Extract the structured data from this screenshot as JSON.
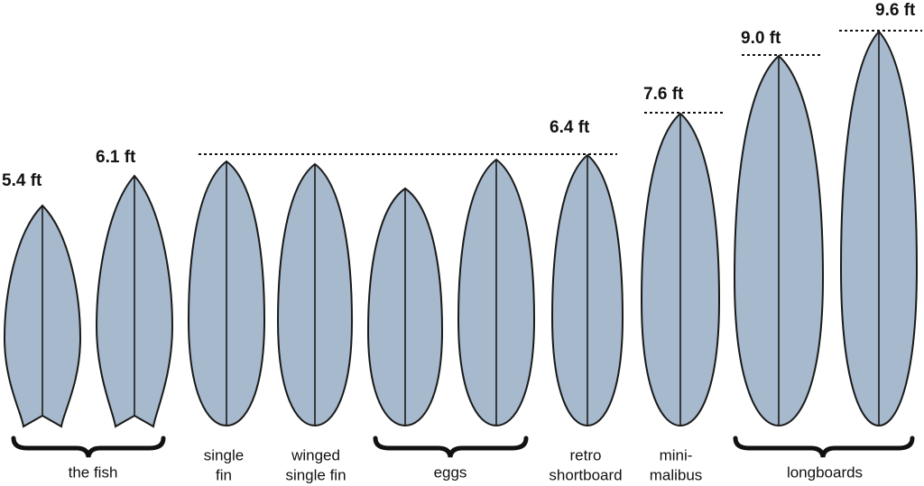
{
  "length_labels": [
    "5.4 ft",
    "6.1 ft",
    "6.4 ft",
    "7.6 ft",
    "9.0 ft",
    "9.6 ft"
  ],
  "groups": [
    {
      "label": [
        "the fish"
      ]
    },
    {
      "label": [
        "single",
        "fin"
      ]
    },
    {
      "label": [
        "winged",
        "single fin"
      ]
    },
    {
      "label": [
        "eggs"
      ]
    },
    {
      "label": [
        "retro",
        "shortboard"
      ]
    },
    {
      "label": [
        "mini-",
        "malibus"
      ]
    },
    {
      "label": [
        "longboards"
      ]
    }
  ]
}
